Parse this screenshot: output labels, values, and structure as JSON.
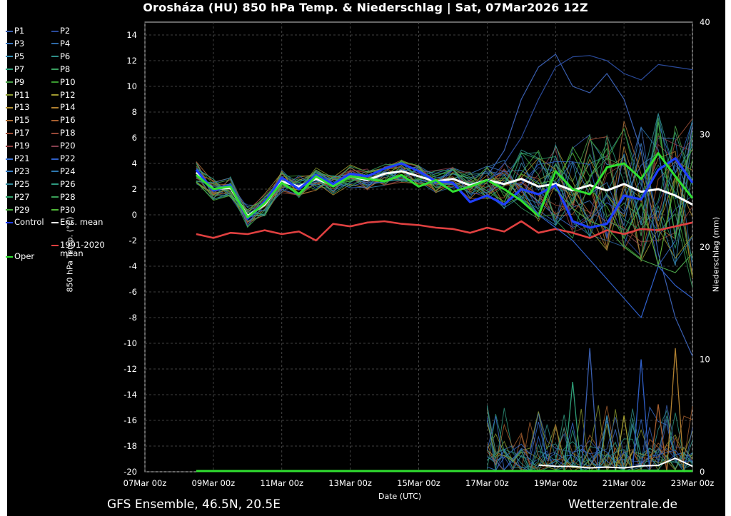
{
  "title": "Orosháza  (HU)  850 hPa Temp. & Niederschlag | Sat, 07Mar2026 12Z",
  "footer": {
    "source": "GFS Ensemble, 46.5N, 20.5E",
    "site": "Wetterzentrale.de"
  },
  "legend": [
    {
      "label": "P1",
      "color": "#3a5fb0"
    },
    {
      "label": "P2",
      "color": "#2a4a9a"
    },
    {
      "label": "P3",
      "color": "#3b78c0"
    },
    {
      "label": "P4",
      "color": "#2e6aa8"
    },
    {
      "label": "P5",
      "color": "#3a90b8"
    },
    {
      "label": "P6",
      "color": "#2f8f8a"
    },
    {
      "label": "P7",
      "color": "#2f9f78"
    },
    {
      "label": "P8",
      "color": "#3aa060"
    },
    {
      "label": "P9",
      "color": "#4aa048"
    },
    {
      "label": "P10",
      "color": "#3a9a30"
    },
    {
      "label": "P11",
      "color": "#8a9a30"
    },
    {
      "label": "P12",
      "color": "#a09a30"
    },
    {
      "label": "P13",
      "color": "#b09030"
    },
    {
      "label": "P14",
      "color": "#b08030"
    },
    {
      "label": "P15",
      "color": "#b07038"
    },
    {
      "label": "P16",
      "color": "#a86030"
    },
    {
      "label": "P17",
      "color": "#a05038"
    },
    {
      "label": "P18",
      "color": "#984838"
    },
    {
      "label": "P19",
      "color": "#904040"
    },
    {
      "label": "P20",
      "color": "#884050"
    },
    {
      "label": "P21",
      "color": "#3a6fd0"
    },
    {
      "label": "P22",
      "color": "#2f5fc8"
    },
    {
      "label": "P23",
      "color": "#3a80c8"
    },
    {
      "label": "P24",
      "color": "#2e78b0"
    },
    {
      "label": "P25",
      "color": "#30889a"
    },
    {
      "label": "P26",
      "color": "#2e9a80"
    },
    {
      "label": "P27",
      "color": "#30a068"
    },
    {
      "label": "P28",
      "color": "#3aa058"
    },
    {
      "label": "P29",
      "color": "#46b040"
    },
    {
      "label": "P30",
      "color": "#50b838"
    },
    {
      "label": "Control",
      "color": "#1f3fff"
    },
    {
      "label": "Ens. mean",
      "color": "#ffffff"
    },
    {
      "label": "1991-2020\nmean",
      "color": "#e04040"
    },
    {
      "label": "Oper",
      "color": "#30e030"
    }
  ],
  "chart_data": {
    "type": "line",
    "title": "Orosháza  (HU)  850 hPa Temp. & Niederschlag | Sat, 07Mar2026 12Z",
    "xlabel": "Date (UTC)",
    "ylabel": "850 hPa Temp. (°C)",
    "ylabel_right": "Niederschlag (mm)",
    "x_ticks": [
      "07Mar 00z",
      "09Mar 00z",
      "11Mar 00z",
      "13Mar 00z",
      "15Mar 00z",
      "17Mar 00z",
      "19Mar 00z",
      "21Mar 00z",
      "23Mar 00z"
    ],
    "x_range_days": [
      0,
      16
    ],
    "ylim": [
      -20,
      15
    ],
    "y_ticks": [
      14,
      12,
      10,
      8,
      6,
      4,
      2,
      0,
      -2,
      -4,
      -6,
      -8,
      -10,
      -12,
      -14,
      -16,
      -18,
      -20
    ],
    "ylim_right": [
      0,
      40
    ],
    "y_ticks_right": [
      40,
      30,
      20,
      10,
      0
    ],
    "grid": true,
    "legend_position": "left outside",
    "series": [
      {
        "name": "Ens. mean",
        "color": "#ffffff",
        "x": [
          1.5,
          2.0,
          2.5,
          3.0,
          3.5,
          4.0,
          4.5,
          5.0,
          5.5,
          6.0,
          6.5,
          7.0,
          7.5,
          8.0,
          8.5,
          9.0,
          9.5,
          10.0,
          10.5,
          11.0,
          11.5,
          12.0,
          12.5,
          13.0,
          13.5,
          14.0,
          14.5,
          15.0,
          15.5,
          16.0
        ],
        "y": [
          3.3,
          2.0,
          2.1,
          -0.1,
          0.8,
          2.6,
          2.2,
          2.8,
          2.3,
          3.0,
          2.7,
          3.2,
          3.4,
          3.0,
          2.6,
          2.8,
          2.3,
          2.7,
          2.4,
          2.8,
          2.2,
          2.4,
          1.9,
          2.3,
          1.9,
          2.4,
          1.8,
          2.0,
          1.5,
          0.8
        ]
      },
      {
        "name": "Control",
        "color": "#1f3fff",
        "x": [
          1.5,
          2.0,
          2.5,
          3.0,
          3.5,
          4.0,
          4.5,
          5.0,
          5.5,
          6.0,
          6.5,
          7.0,
          7.5,
          8.0,
          8.5,
          9.0,
          9.5,
          10.0,
          10.5,
          11.0,
          11.5,
          12.0,
          12.5,
          13.0,
          13.5,
          14.0,
          14.5,
          15.0,
          15.5,
          16.0
        ],
        "y": [
          3.5,
          1.9,
          2.3,
          -0.3,
          1.0,
          2.9,
          2.0,
          3.1,
          2.4,
          3.2,
          3.0,
          3.6,
          4.0,
          3.4,
          2.6,
          2.5,
          1.0,
          1.5,
          0.8,
          2.0,
          1.6,
          2.3,
          -0.5,
          -1.0,
          -0.7,
          1.5,
          1.2,
          3.5,
          4.4,
          2.5
        ]
      },
      {
        "name": "Oper",
        "color": "#30e030",
        "x": [
          1.5,
          2.0,
          2.5,
          3.0,
          3.5,
          4.0,
          4.5,
          5.0,
          5.5,
          6.0,
          6.5,
          7.0,
          7.5,
          8.0,
          8.5,
          9.0,
          9.5,
          10.0,
          10.5,
          11.0,
          11.5,
          12.0,
          12.5,
          13.0,
          13.5,
          14.0,
          14.5,
          15.0,
          15.5,
          16.0
        ],
        "y": [
          3.1,
          2.0,
          2.2,
          -0.2,
          0.9,
          2.5,
          1.6,
          3.0,
          2.2,
          3.0,
          2.8,
          2.6,
          3.1,
          2.2,
          2.7,
          1.8,
          2.2,
          2.7,
          2.0,
          1.1,
          -0.1,
          3.4,
          2.0,
          1.6,
          3.7,
          4.0,
          2.8,
          4.8,
          3.0,
          1.3
        ]
      },
      {
        "name": "1991-2020 mean",
        "color": "#e04040",
        "x": [
          1.5,
          2.0,
          2.5,
          3.0,
          3.5,
          4.0,
          4.5,
          5.0,
          5.5,
          6.0,
          6.5,
          7.0,
          7.5,
          8.0,
          8.5,
          9.0,
          9.5,
          10.0,
          10.5,
          11.0,
          11.5,
          12.0,
          12.5,
          13.0,
          13.5,
          14.0,
          14.5,
          15.0,
          15.5,
          16.0
        ],
        "y": [
          -1.5,
          -1.8,
          -1.4,
          -1.5,
          -1.2,
          -1.5,
          -1.3,
          -2.0,
          -0.7,
          -0.9,
          -0.6,
          -0.5,
          -0.7,
          -0.8,
          -1.0,
          -1.1,
          -1.4,
          -1.0,
          -1.3,
          -0.5,
          -1.4,
          -1.1,
          -1.4,
          -1.8,
          -1.2,
          -1.5,
          -1.1,
          -1.2,
          -0.9,
          -0.6
        ]
      },
      {
        "name": "P1",
        "color": "#3a5fb0",
        "x": [
          10.0,
          10.5,
          11.0,
          11.5,
          12.0,
          12.5,
          13.0,
          13.5,
          14.0,
          14.5,
          15.0,
          15.5,
          16.0
        ],
        "y": [
          3.0,
          5.0,
          9.0,
          11.5,
          12.5,
          10.0,
          9.5,
          11.0,
          9.0,
          5.0,
          -3.0,
          -8.0,
          -11.0
        ]
      },
      {
        "name": "P2",
        "color": "#2a4a9a",
        "x": [
          10.0,
          10.5,
          11.0,
          11.5,
          12.0,
          12.5,
          13.0,
          13.5,
          14.0,
          14.5,
          15.0,
          15.5,
          16.0
        ],
        "y": [
          2.5,
          4.0,
          6.0,
          9.0,
          11.5,
          12.3,
          12.4,
          12.0,
          11.0,
          10.5,
          11.7,
          11.5,
          11.3
        ]
      },
      {
        "name": "P22",
        "color": "#2f5fc8",
        "x": [
          11.0,
          11.5,
          12.0,
          12.5,
          13.0,
          13.5,
          14.0,
          14.5,
          15.0,
          15.5,
          16.0
        ],
        "y": [
          2.0,
          0.0,
          -1.0,
          -2.0,
          -3.5,
          -5.0,
          -6.5,
          -8.0,
          -4.0,
          -5.5,
          -6.5
        ]
      },
      {
        "name": "P9",
        "color": "#4aa048",
        "x": [
          12.0,
          12.5,
          13.0,
          13.5,
          14.0,
          14.5,
          15.0,
          15.5,
          16.0
        ],
        "y": [
          2.0,
          0.5,
          -0.5,
          -1.0,
          -2.5,
          -3.5,
          -4.0,
          -4.5,
          -3.0
        ]
      }
    ],
    "precipitation": [
      {
        "name": "P1",
        "color": "#3a5fb0",
        "x": [
          13.0
        ],
        "y": [
          11
        ]
      },
      {
        "name": "P22",
        "color": "#2f5fc8",
        "x": [
          14.5
        ],
        "y": [
          10
        ]
      },
      {
        "name": "P14",
        "color": "#b08030",
        "x": [
          15.5
        ],
        "y": [
          11
        ]
      },
      {
        "name": "P7",
        "color": "#2f9f78",
        "x": [
          12.5
        ],
        "y": [
          8
        ]
      },
      {
        "name": "P16",
        "color": "#a86030",
        "x": [
          15.0
        ],
        "y": [
          6
        ]
      },
      {
        "name": "P12",
        "color": "#a09a30",
        "x": [
          14.0
        ],
        "y": [
          5
        ]
      },
      {
        "name": "P5",
        "color": "#3a90b8",
        "x": [
          13.5
        ],
        "y": [
          5
        ]
      }
    ]
  }
}
